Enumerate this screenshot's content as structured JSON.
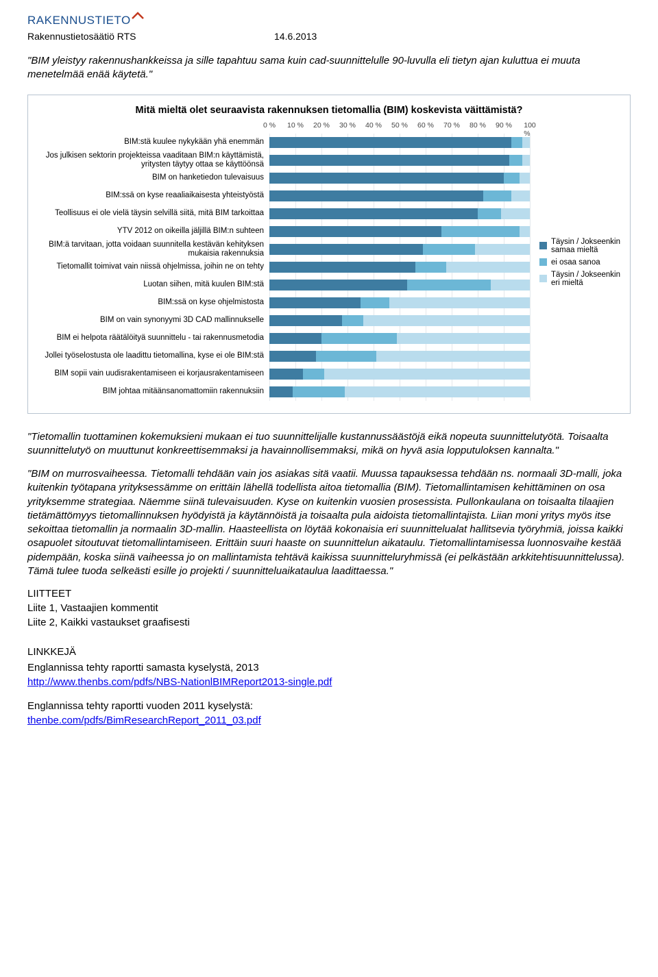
{
  "header": {
    "brand": "RAKENNUSTIETO",
    "org": "Rakennustietosäätiö RTS",
    "date": "14.6.2013"
  },
  "intro_quote": "\"BIM yleistyy rakennushankkeissa ja sille tapahtuu sama kuin cad-suunnittelulle 90-luvulla eli tietyn ajan kuluttua ei muuta menetelmää enää käytetä.\"",
  "chart": {
    "title": "Mitä mieltä olet seuraavista rakennuksen tietomallia (BIM) koskevista väittämistä?",
    "axis_ticks": [
      "0 %",
      "10 %",
      "20 %",
      "30 %",
      "40 %",
      "50 %",
      "60 %",
      "70 %",
      "80 %",
      "90 %",
      "100 %"
    ],
    "colors": {
      "agree": "#3e7ca1",
      "neutral": "#6cb7d6",
      "disagree": "#b9dced",
      "grid": "#e4e8ec",
      "border": "#b8c4d0"
    },
    "legend": [
      {
        "label": "Täysin / Jokseenkin samaa mieltä",
        "color": "#3e7ca1"
      },
      {
        "label": "ei osaa sanoa",
        "color": "#6cb7d6"
      },
      {
        "label": "Täysin / Jokseenkin eri mieltä",
        "color": "#b9dced"
      }
    ],
    "rows": [
      {
        "label": "BIM:stä kuulee nykykään yhä enemmän",
        "values": [
          93,
          4,
          3
        ]
      },
      {
        "label": "Jos julkisen sektorin projekteissa vaaditaan BIM:n käyttämistä, yritysten täytyy ottaa se käyttöönsä",
        "multi": true,
        "values": [
          92,
          5,
          3
        ]
      },
      {
        "label": "BIM on hanketiedon tulevaisuus",
        "values": [
          90,
          6,
          4
        ]
      },
      {
        "label": "BIM:ssä on kyse reaaliaikaisesta yhteistyöstä",
        "values": [
          82,
          11,
          7
        ]
      },
      {
        "label": "Teollisuus ei ole vielä täysin selvillä siitä, mitä BIM tarkoittaa",
        "values": [
          80,
          9,
          11
        ]
      },
      {
        "label": "YTV 2012 on oikeilla jäljillä BIM:n suhteen",
        "values": [
          66,
          30,
          4
        ]
      },
      {
        "label": "BIM:ä tarvitaan, jotta voidaan suunnitella kestävän kehityksen mukaisia rakennuksia",
        "multi": true,
        "values": [
          59,
          20,
          21
        ]
      },
      {
        "label": "Tietomallit toimivat vain niissä ohjelmissa, joihin ne on tehty",
        "values": [
          56,
          12,
          32
        ]
      },
      {
        "label": "Luotan siihen, mitä kuulen BIM:stä",
        "values": [
          53,
          32,
          15
        ]
      },
      {
        "label": "BIM:ssä on kyse ohjelmistosta",
        "values": [
          35,
          11,
          54
        ]
      },
      {
        "label": "BIM on vain synonyymi 3D CAD mallinnukselle",
        "values": [
          28,
          8,
          64
        ]
      },
      {
        "label": "BIM ei helpota räätälöityä suunnittelu - tai rakennusmetodia",
        "values": [
          20,
          29,
          51
        ]
      },
      {
        "label": "Jollei työselostusta ole laadittu tietomallina, kyse ei ole BIM:stä",
        "values": [
          18,
          23,
          59
        ]
      },
      {
        "label": "BIM sopii vain uudisrakentamiseen ei korjausrakentamiseen",
        "values": [
          13,
          8,
          79
        ]
      },
      {
        "label": "BIM johtaa mitäänsanomattomiin rakennuksiin",
        "values": [
          9,
          20,
          71
        ]
      }
    ]
  },
  "body": {
    "p1": "\"Tietomallin tuottaminen kokemuksieni mukaan ei tuo suunnittelijalle kustannussäästöjä eikä nopeuta suunnittelutyötä. Toisaalta suunnittelutyö on muuttunut konkreettisemmaksi ja havainnollisemmaksi, mikä on hyvä asia lopputuloksen kannalta.\"",
    "p2": "\"BIM on murrosvaiheessa. Tietomalli tehdään vain jos asiakas sitä vaatii. Muussa tapauksessa tehdään ns. normaali 3D-malli, joka kuitenkin työtapana yrityksessämme on erittäin lähellä todellista aitoa tietomallia (BIM). Tietomallintamisen kehittäminen on osa yrityksemme strategiaa. Näemme siinä tulevaisuuden. Kyse on kuitenkin vuosien prosessista. Pullonkaulana on toisaalta tilaajien tietämättömyys tietomallinnuksen hyödyistä ja käytännöistä ja toisaalta pula aidoista tietomallintajista. Liian moni yritys myös itse sekoittaa tietomallin ja normaalin 3D-mallin. Haasteellista on löytää kokonaisia eri suunnittelualat hallitsevia työryhmiä, joissa kaikki osapuolet sitoutuvat tietomallintamiseen. Erittäin suuri haaste on suunnittelun aikataulu. Tietomallintamisessa luonnosvaihe kestää pidempään, koska siinä vaiheessa jo on mallintamista tehtävä kaikissa suunnitteluryhmissä (ei pelkästään arkkitehtisuunnittelussa). Tämä tulee tuoda selkeästi esille jo projekti / suunnitteluaikataulua laadittaessa.\""
  },
  "attachments": {
    "heading": "LIITTEET",
    "items": [
      "Liite 1, Vastaajien kommentit",
      "Liite 2, Kaikki vastaukset graafisesti"
    ]
  },
  "links": {
    "heading": "LINKKEJÄ",
    "block1_intro_a": "Englannissa tehty ",
    "block1_intro_b": "raportti samasta kyselystä, 2013",
    "block1_url": "http://www.thenbs.com/pdfs/NBS-NationlBIMReport2013-single.pdf",
    "block2_intro": "Englannissa tehty raportti vuoden 2011 kyselystä:",
    "block2_url": "thenbe.com/pdfs/BimResearchReport_2011_03.pdf"
  }
}
